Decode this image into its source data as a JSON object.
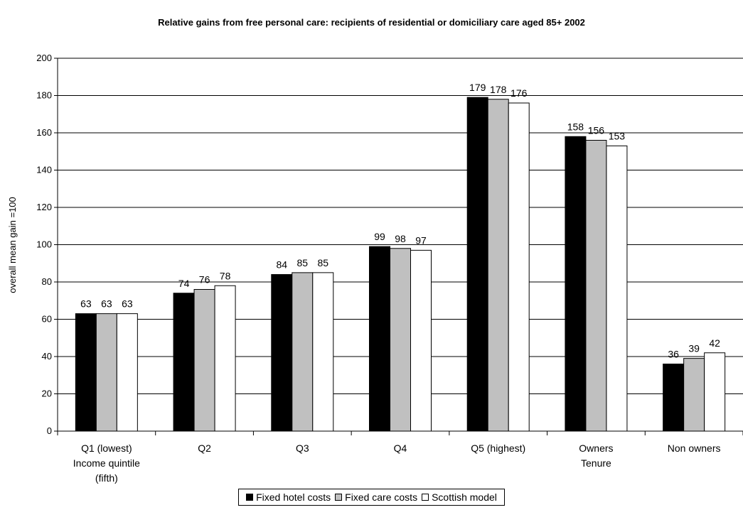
{
  "chart_data": {
    "type": "bar",
    "title": "Relative gains from free personal care: recipients of residential or domiciliary care aged 85+ 2002",
    "ylabel": "overall mean gain =100",
    "xlabel": "",
    "ylim": [
      0,
      200
    ],
    "yticks": [
      0,
      20,
      40,
      60,
      80,
      100,
      120,
      140,
      160,
      180,
      200
    ],
    "grid": true,
    "legend_position": "bottom",
    "categories": [
      [
        "Q1 (lowest)",
        "Income quintile",
        "(fifth)"
      ],
      [
        "Q2"
      ],
      [
        "Q3"
      ],
      [
        "Q4"
      ],
      [
        "Q5 (highest)"
      ],
      [
        "Owners",
        "Tenure"
      ],
      [
        "Non owners"
      ]
    ],
    "series": [
      {
        "name": "Fixed hotel costs",
        "color": "#000000",
        "values": [
          63,
          74,
          84,
          99,
          179,
          158,
          36
        ]
      },
      {
        "name": "Fixed care costs",
        "color": "#c0c0c0",
        "values": [
          63,
          76,
          85,
          98,
          178,
          156,
          39
        ]
      },
      {
        "name": "Scottish model",
        "color": "#ffffff",
        "values": [
          63,
          78,
          85,
          97,
          176,
          153,
          42
        ]
      }
    ]
  }
}
